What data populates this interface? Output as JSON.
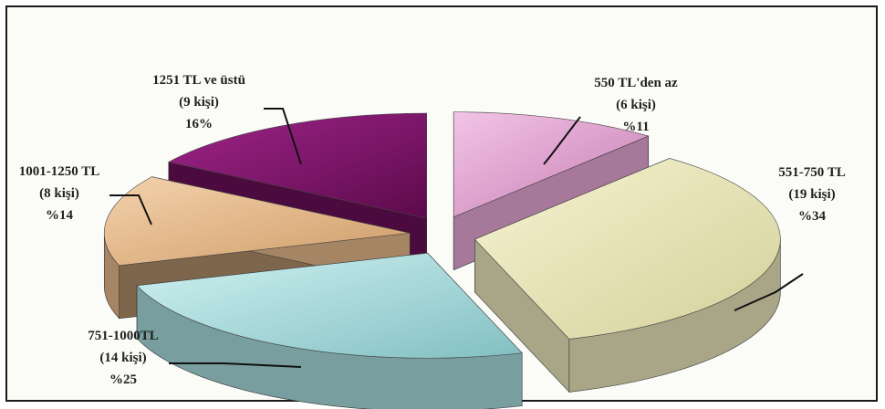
{
  "chart_data": {
    "type": "pie",
    "style": "3d-exploded",
    "slices": [
      {
        "label": "550 TL'den az",
        "count": "(6 kişi)",
        "percent_text": "%11",
        "value": 11,
        "color": "#e6a6d4"
      },
      {
        "label": "551-750 TL",
        "count": "(19 kişi)",
        "percent_text": "%34",
        "value": 34,
        "color": "#e9e6bc"
      },
      {
        "label": "751-1000TL",
        "count": "(14 kişi)",
        "percent_text": "%25",
        "value": 25,
        "color": "#a7dcdd"
      },
      {
        "label": "1001-1250 TL",
        "count": "(8 kişi)",
        "percent_text": "%14",
        "value": 14,
        "color": "#e5b98a"
      },
      {
        "label": "1251 TL ve üstü",
        "count": "(9 kişi)",
        "percent_text": "16%",
        "value": 16,
        "color": "#8a1470"
      }
    ]
  }
}
